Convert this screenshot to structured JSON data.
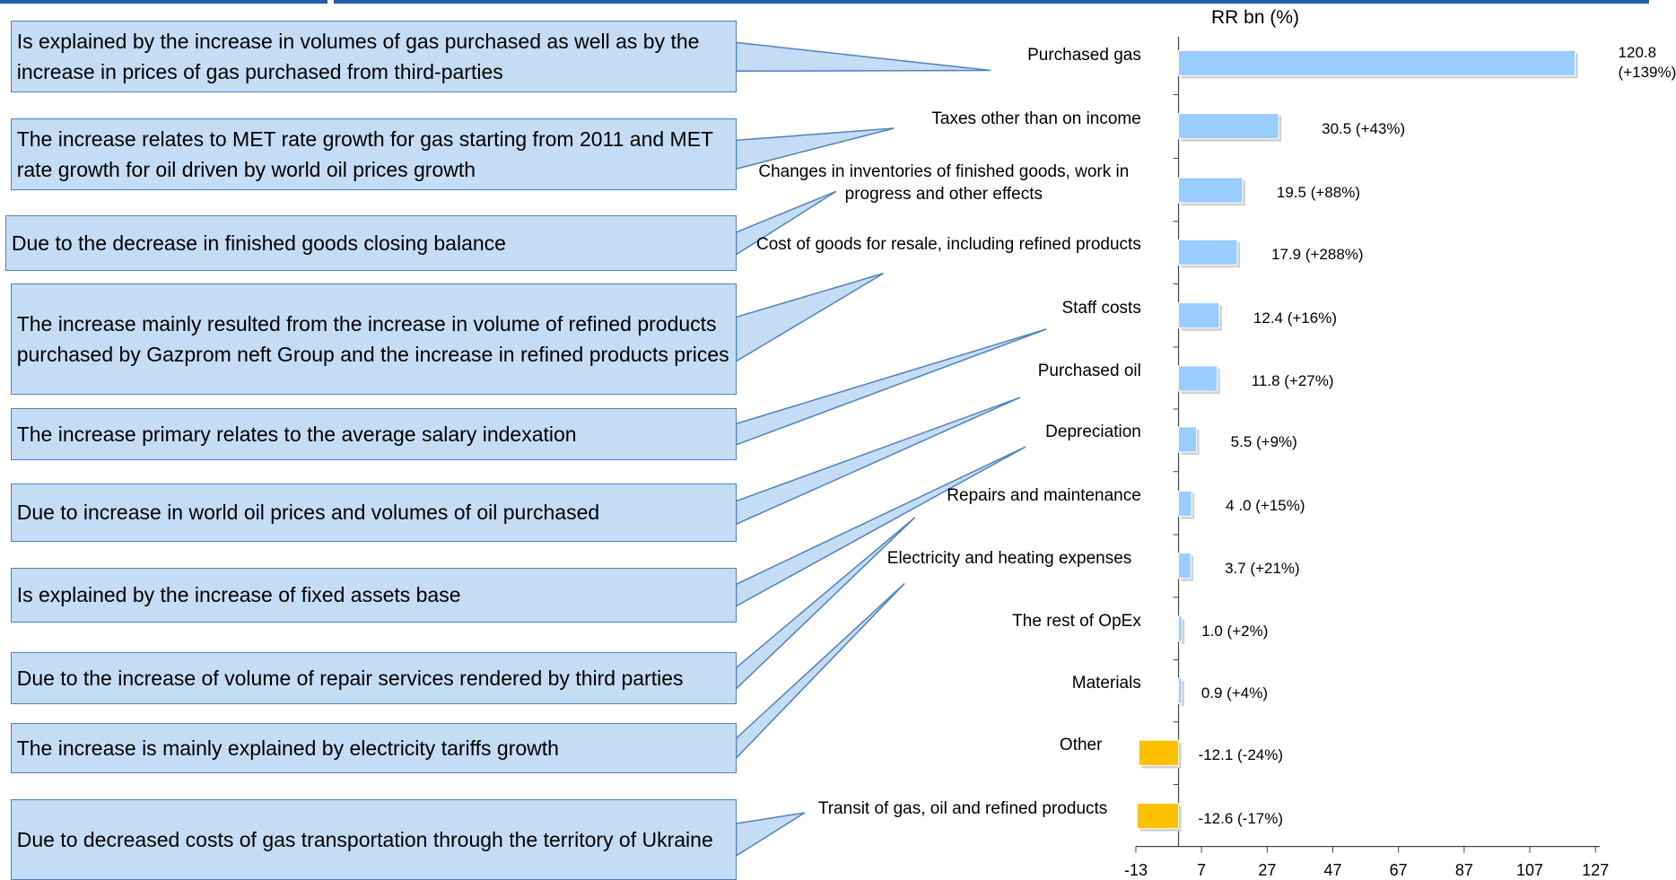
{
  "chart_data": {
    "type": "bar",
    "orientation": "horizontal",
    "x_label": "RR bn (%)",
    "categories": [
      "Purchased gas",
      "Taxes other than on income",
      "Changes in inventories of finished goods, work in progress   and other effects",
      "Cost of goods for resale, including refined products",
      "Staff costs",
      "Purchased oil",
      "Depreciation",
      "Repairs and maintenance",
      "Electricity and heating expenses",
      "The rest of OpEx",
      "Materials",
      "Other",
      "Transit of gas, oil and refined products"
    ],
    "values": [
      120.8,
      30.5,
      19.5,
      17.9,
      12.4,
      11.8,
      5.5,
      4.0,
      3.7,
      1.0,
      0.9,
      -12.1,
      -12.6
    ],
    "value_labels": [
      "120.8 (+139%)",
      "30.5 (+43%)",
      "19.5 (+88%)",
      "17.9 (+288%)",
      "12.4 (+16%)",
      "11.8 (+27%)",
      "5.5 (+9%)",
      "4 .0 (+15%)",
      "3.7 (+21%)",
      "1.0 (+2%)",
      "0.9 (+4%)",
      "-12.1 (-24%)",
      "-12.6 (-17%)"
    ],
    "colors": [
      "#99ccff",
      "#99ccff",
      "#99ccff",
      "#99ccff",
      "#99ccff",
      "#99ccff",
      "#99ccff",
      "#99ccff",
      "#99ccff",
      "#99ccff",
      "#99ccff",
      "#ffc000",
      "#ffc000"
    ],
    "xlim": [
      -13,
      127
    ],
    "xticks": [
      -13,
      7,
      27,
      47,
      67,
      87,
      107,
      127
    ],
    "annotations": [
      "Is explained by the increase in volumes of gas purchased as well as by the increase in prices  of gas purchased from third-parties",
      "The increase relates to MET rate growth for gas  starting from 2011 and MET rate growth for oil driven by world oil prices growth",
      "Due to the decrease in finished goods closing balance",
      "The increase mainly resulted from the increase in volume of refined products purchased by Gazprom neft Group and the increase in refined products prices",
      "The increase primary relates to the average salary indexation",
      "Due to increase in world oil prices and volumes of oil purchased",
      "Is explained by the increase of fixed assets base",
      "Due to the increase of volume of repair services rendered by third parties",
      "The increase is mainly explained by electricity tariffs growth",
      "Due to decreased costs of gas transportation through the territory of Ukraine"
    ]
  }
}
